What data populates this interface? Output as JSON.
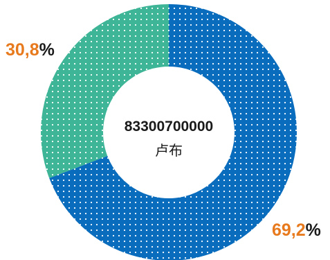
{
  "chart_data": {
    "type": "pie",
    "donut": true,
    "start_angle_deg": 0,
    "direction": "clockwise",
    "center_total": "83300700000",
    "center_unit": "卢布",
    "slices": [
      {
        "value": 69.2,
        "label_number": "69,2",
        "label_suffix": "%",
        "color": "#0a6cbc"
      },
      {
        "value": 30.8,
        "label_number": "30,8",
        "label_suffix": "%",
        "color": "#3eb597"
      }
    ],
    "label_color": "#e87a1e",
    "dot_color": "#ffffff"
  }
}
